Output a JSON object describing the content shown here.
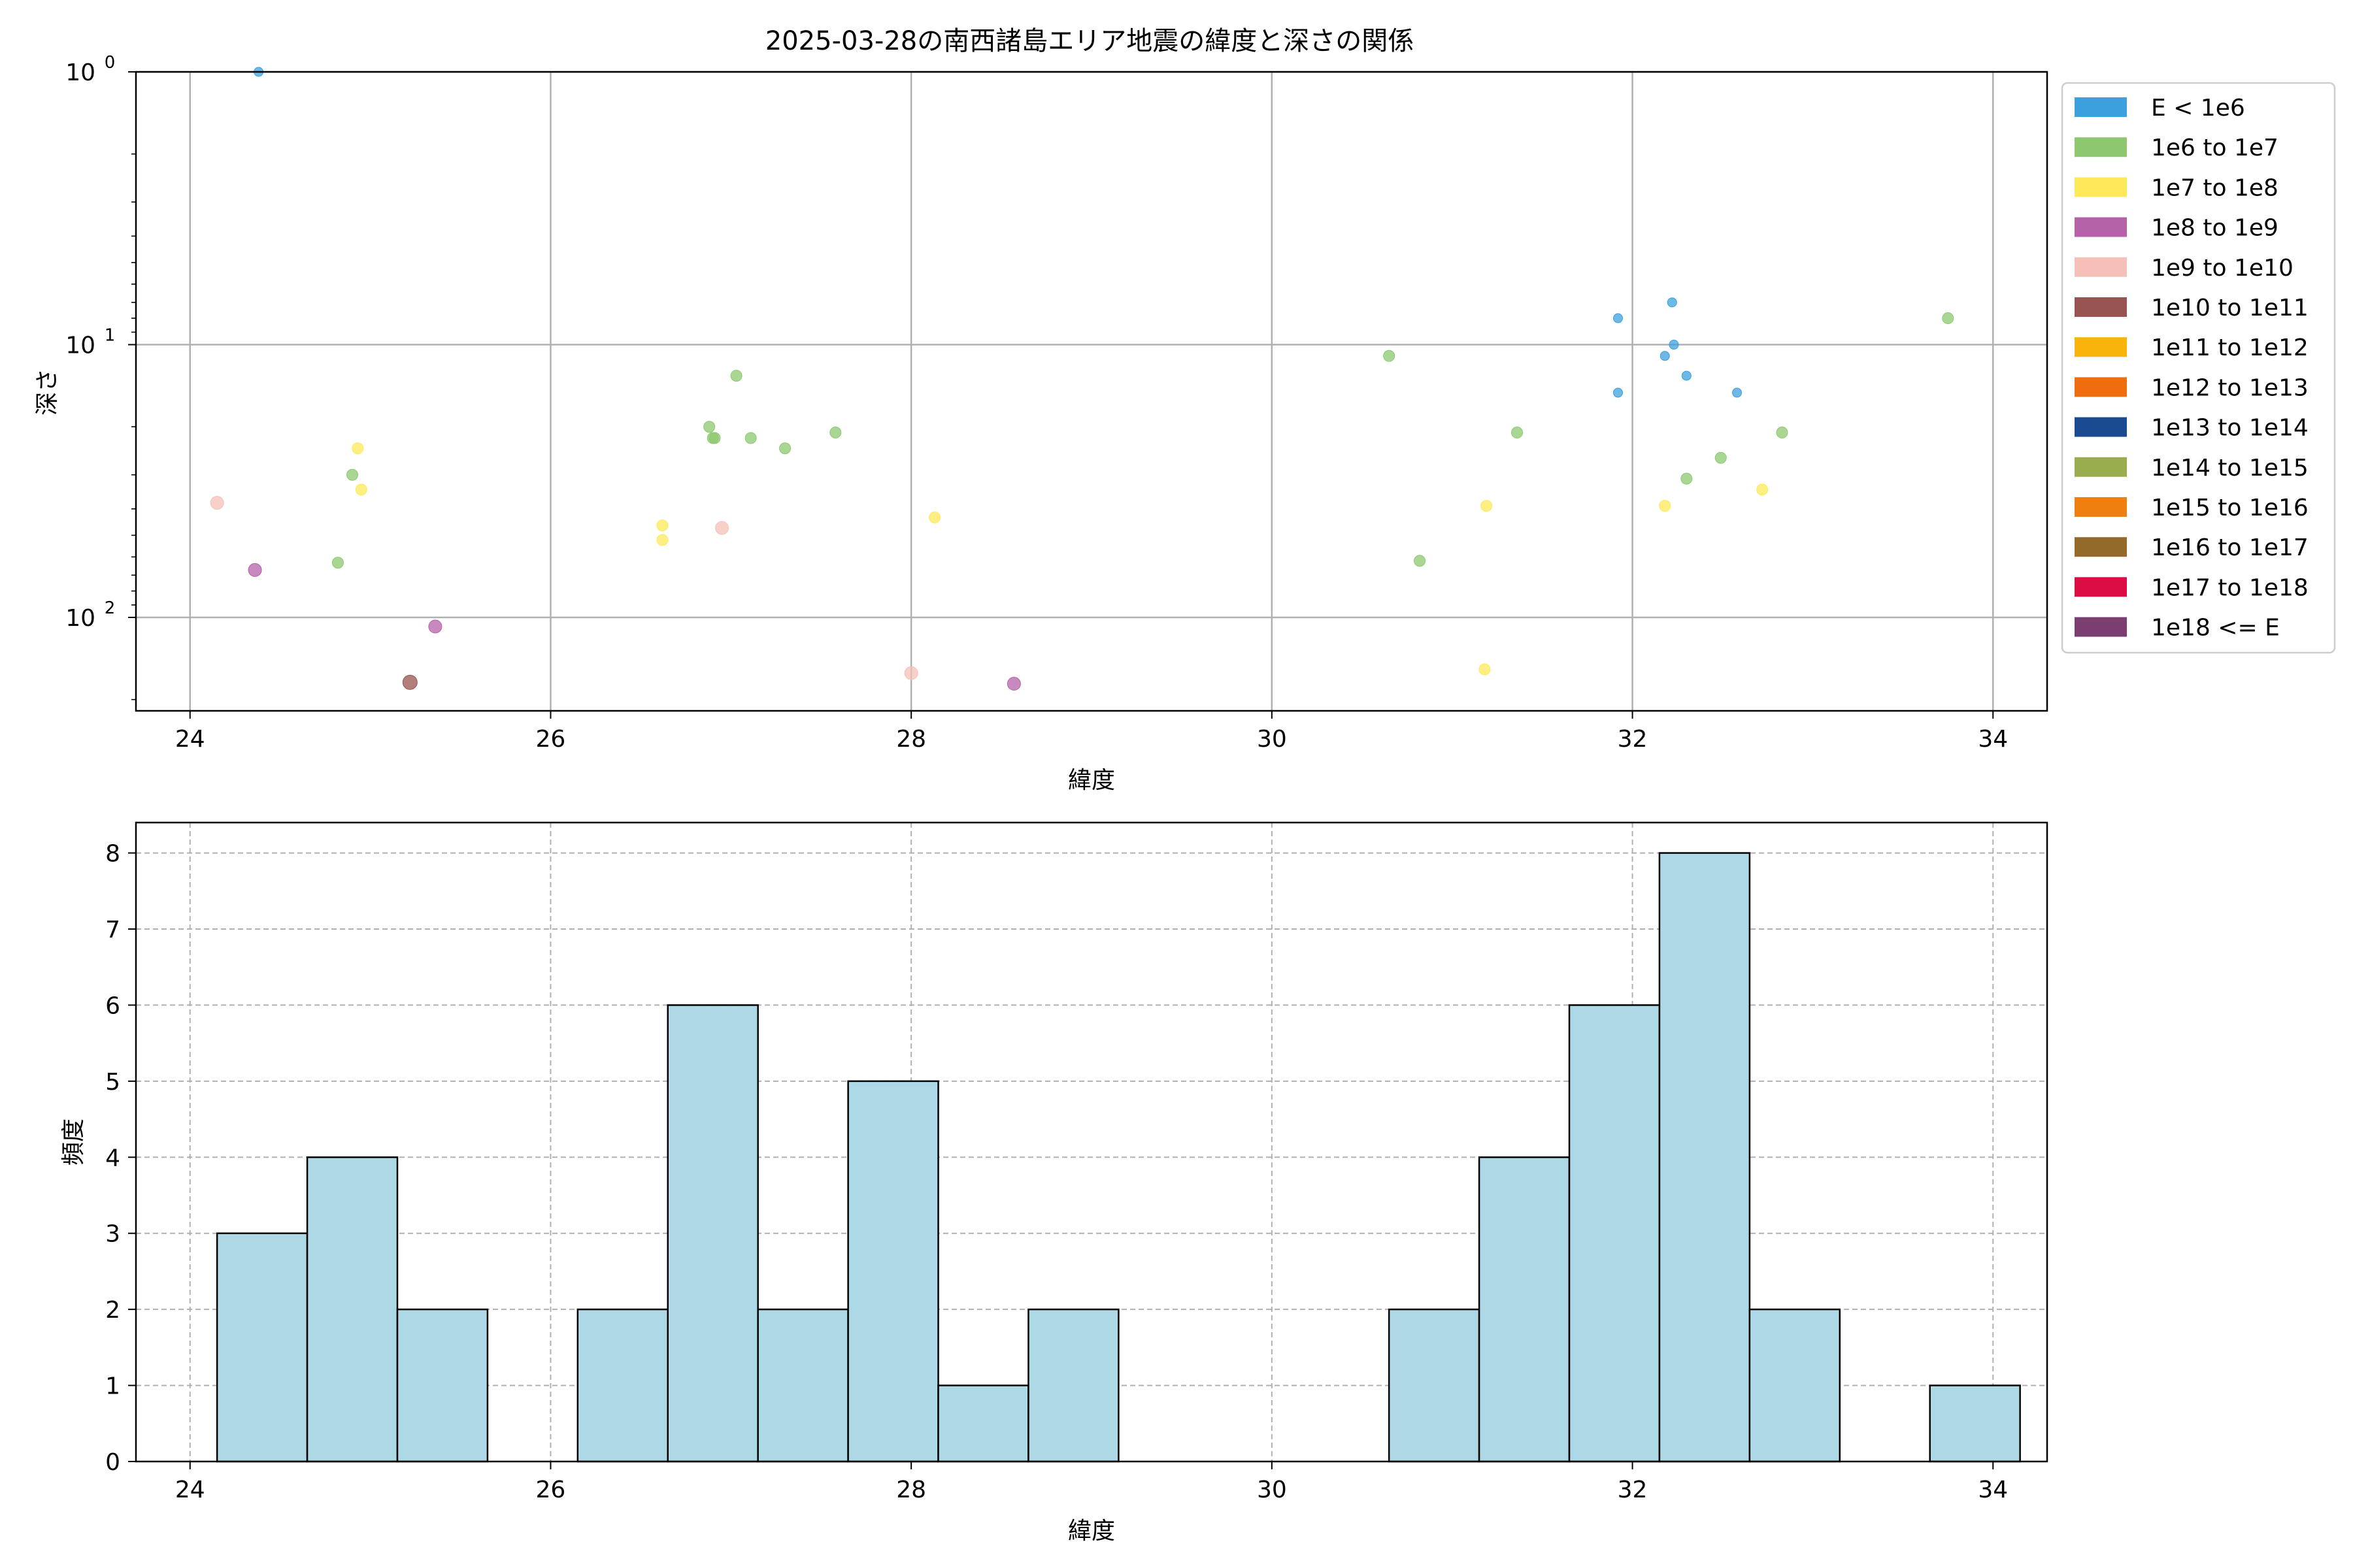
{
  "chart_data": [
    {
      "type": "scatter",
      "title": "2025-03-28の南西諸島エリア地震の緯度と深さの関係",
      "xlabel": "緯度",
      "ylabel": "深さ",
      "yscale": "log",
      "yinverted": true,
      "xlim": [
        23.7,
        34.3
      ],
      "ylim": [
        1.0,
        220
      ],
      "grid": true,
      "legend_position": "outside-right",
      "xticks": [
        "24",
        "26",
        "28",
        "30",
        "32",
        "34"
      ],
      "yticks": [
        {
          "value": 1,
          "base": "10",
          "exp": "0"
        },
        {
          "value": 10,
          "base": "10",
          "exp": "1"
        },
        {
          "value": 100,
          "base": "10",
          "exp": "2"
        }
      ],
      "legend": [
        {
          "label": "E < 1e6",
          "color": "#3ca0dc"
        },
        {
          "label": "1e6 to 1e7",
          "color": "#8dc870"
        },
        {
          "label": "1e7 to 1e8",
          "color": "#fde95a"
        },
        {
          "label": "1e8 to 1e9",
          "color": "#b562a8"
        },
        {
          "label": "1e9 to 1e10",
          "color": "#f6c0b8"
        },
        {
          "label": "1e10 to 1e11",
          "color": "#985450"
        },
        {
          "label": "1e11 to 1e12",
          "color": "#f8b40a"
        },
        {
          "label": "1e12 to 1e13",
          "color": "#ef6d0f"
        },
        {
          "label": "1e13 to 1e14",
          "color": "#1a4b91"
        },
        {
          "label": "1e14 to 1e15",
          "color": "#9aad4e"
        },
        {
          "label": "1e15 to 1e16",
          "color": "#ef7f0f"
        },
        {
          "label": "1e16 to 1e17",
          "color": "#946a2b"
        },
        {
          "label": "1e17 to 1e18",
          "color": "#dc0c45"
        },
        {
          "label": "1e18 <= E",
          "color": "#7a3f70"
        }
      ],
      "points": [
        {
          "x": 24.38,
          "y": 1.0,
          "cls": 0
        },
        {
          "x": 31.92,
          "y": 8.0,
          "cls": 0
        },
        {
          "x": 32.22,
          "y": 7.0,
          "cls": 0
        },
        {
          "x": 32.23,
          "y": 10.0,
          "cls": 0
        },
        {
          "x": 32.18,
          "y": 11.0,
          "cls": 0
        },
        {
          "x": 32.3,
          "y": 13.0,
          "cls": 0
        },
        {
          "x": 31.92,
          "y": 15.0,
          "cls": 0
        },
        {
          "x": 32.58,
          "y": 15.0,
          "cls": 0
        },
        {
          "x": 33.75,
          "y": 8.0,
          "cls": 1
        },
        {
          "x": 30.65,
          "y": 11.0,
          "cls": 1
        },
        {
          "x": 27.03,
          "y": 13.0,
          "cls": 1
        },
        {
          "x": 26.88,
          "y": 20.0,
          "cls": 1
        },
        {
          "x": 26.9,
          "y": 22.0,
          "cls": 1
        },
        {
          "x": 26.91,
          "y": 22.0,
          "cls": 1
        },
        {
          "x": 27.11,
          "y": 22.0,
          "cls": 1
        },
        {
          "x": 27.58,
          "y": 21.0,
          "cls": 1
        },
        {
          "x": 27.3,
          "y": 24.0,
          "cls": 1
        },
        {
          "x": 31.36,
          "y": 21.0,
          "cls": 1
        },
        {
          "x": 32.83,
          "y": 21.0,
          "cls": 1
        },
        {
          "x": 32.49,
          "y": 26.0,
          "cls": 1
        },
        {
          "x": 32.3,
          "y": 31.0,
          "cls": 1
        },
        {
          "x": 24.9,
          "y": 30.0,
          "cls": 1
        },
        {
          "x": 24.82,
          "y": 63.0,
          "cls": 1
        },
        {
          "x": 30.82,
          "y": 62.0,
          "cls": 1
        },
        {
          "x": 24.93,
          "y": 24.0,
          "cls": 2
        },
        {
          "x": 24.95,
          "y": 34.0,
          "cls": 2
        },
        {
          "x": 26.62,
          "y": 46.0,
          "cls": 2
        },
        {
          "x": 26.62,
          "y": 52.0,
          "cls": 2
        },
        {
          "x": 28.13,
          "y": 43.0,
          "cls": 2
        },
        {
          "x": 31.19,
          "y": 39.0,
          "cls": 2
        },
        {
          "x": 32.18,
          "y": 39.0,
          "cls": 2
        },
        {
          "x": 32.72,
          "y": 34.0,
          "cls": 2
        },
        {
          "x": 31.18,
          "y": 155.0,
          "cls": 2
        },
        {
          "x": 24.36,
          "y": 67.0,
          "cls": 3
        },
        {
          "x": 25.36,
          "y": 108.0,
          "cls": 3
        },
        {
          "x": 28.57,
          "y": 175.0,
          "cls": 3
        },
        {
          "x": 24.15,
          "y": 38.0,
          "cls": 4
        },
        {
          "x": 26.95,
          "y": 47.0,
          "cls": 4
        },
        {
          "x": 28.0,
          "y": 160.0,
          "cls": 4
        },
        {
          "x": 25.22,
          "y": 173.0,
          "cls": 5
        }
      ]
    },
    {
      "type": "bar",
      "title": "",
      "xlabel": "緯度",
      "ylabel": "頻度",
      "xlim": [
        23.7,
        34.3
      ],
      "ylim": [
        0,
        8.4
      ],
      "grid": true,
      "xticks": [
        "24",
        "26",
        "28",
        "30",
        "32",
        "34"
      ],
      "yticks": [
        "0",
        "1",
        "2",
        "3",
        "4",
        "5",
        "6",
        "7",
        "8"
      ],
      "bin_edges": [
        24.15,
        24.65,
        25.15,
        25.65,
        26.15,
        26.65,
        27.15,
        27.65,
        28.15,
        28.65,
        29.15,
        29.65,
        30.15,
        30.65,
        31.15,
        31.65,
        32.15,
        32.65,
        33.15,
        33.65,
        34.15
      ],
      "values": [
        3,
        4,
        2,
        0,
        2,
        6,
        2,
        5,
        1,
        2,
        0,
        0,
        0,
        2,
        4,
        6,
        8,
        2,
        0,
        1
      ],
      "bar_color": "#add8e6"
    }
  ]
}
